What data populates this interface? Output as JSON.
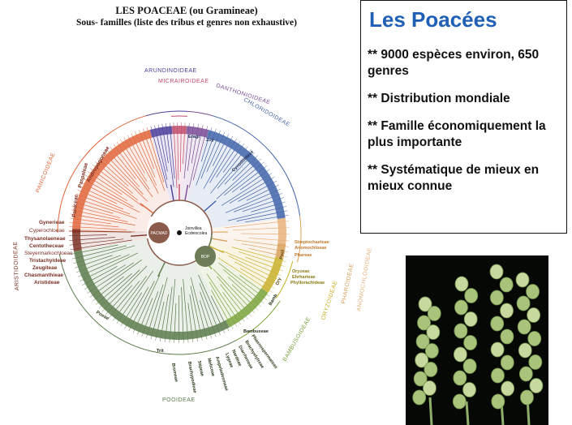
{
  "header": {
    "title": "LES POACEAE (ou Gramineae)",
    "subtitle": "Sous- familles (liste des tribus et genres non exhaustive)"
  },
  "info": {
    "heading": "Les Poacées",
    "bullets": [
      "** 9000 espèces environ, 650 genres",
      "** Distribution mondiale",
      "** Famille économiquement la plus importante",
      "** Systématique de mieux en mieux connue"
    ]
  },
  "tree": {
    "subfamilies": {
      "arundinoideae": "ARUNDINOIDEAE",
      "micrairoideae": "MICRAIROIDEAE",
      "danthonioideae": "DANTHONIOIDEAE",
      "chloridoideae": "CHLORIDOIDEAE",
      "panicoideae": "PANICOIDEAE",
      "aristidoideae": "ARISTIDOIDEAE",
      "pooideae": "POOIDEAE",
      "bambusoideae": "BAMBUSOIDEAE",
      "oryzoideae": "ORYZOIDEAE",
      "pharoideae": "PHAROIDEAE",
      "anomochlooideae": "ANOMOCHLOOIDEAE"
    },
    "clades": {
      "pacmad": "PACMAD",
      "bop": "BOP",
      "outgroups": "Joinvillea\nEcdeiocolea"
    },
    "tribes": {
      "andropogoneae": "Andropogoneae",
      "paniceae": "Paniceae",
      "paspaleae": "Paspaleae",
      "eragr": "Eragr",
      "zoy": "Zoy",
      "cynodonteae": "Cynodonteae",
      "gynerieae": "Gynerieae",
      "cyperochloeae": "Cyperochloeae",
      "thysanolaeneae": "Thysanolaeneae",
      "centotheceae": "Centotheceae",
      "steyermarkochloeae": "Steyermarkochloeae",
      "tristachyideae": "Tristachyideae",
      "zeugiteae": "Zeugiteae",
      "chasmanthieae": "Chasmanthieae",
      "aristideae": "Aristideae",
      "streptochaeteae": "Streptochaeteae",
      "anomochloeae": "Anomochloeae",
      "phareae": "Phareae",
      "ehrharteae": "Ehrharteae",
      "oryzeae": "Oryzeae",
      "phyllorachideae": "Phyllorachideae",
      "bambuseae": "Bambuseae",
      "poeae": "Poeae",
      "triticeae": "Trit",
      "bromeae": "Bromeae",
      "brachypodieae": "Brachypodieae",
      "stipeae": "Stipeae",
      "meliceae": "Meliceae",
      "ampelodesmeae": "Ampelodesmeae",
      "lygeae": "Lygeae",
      "nardeae": "Nardeae",
      "diarrheneae": "Diarrheneae",
      "brachyelytreae": "Brachyelytreae",
      "phaenospermateae": "Phaenospermateae",
      "oryz_short": "Ory",
      "bamb_short": "Bamb",
      "pool": "Pool"
    }
  },
  "photo": {
    "label": "wheat-spikes-photo"
  },
  "colors": {
    "panicoid": "#e0653a",
    "chloridoid": "#3f63a8",
    "danthonioid": "#7a4a95",
    "arundinoid": "#4a3c9a",
    "micrairoid": "#c04a6a",
    "aristidoid": "#7a2f22",
    "pooid": "#5a7a4a",
    "bambusoid": "#7aa23a",
    "oryzoid": "#c9b02a",
    "pharoid": "#d9a05a",
    "anomochlooid": "#e7b07a",
    "heading_blue": "#1f5fb5"
  }
}
